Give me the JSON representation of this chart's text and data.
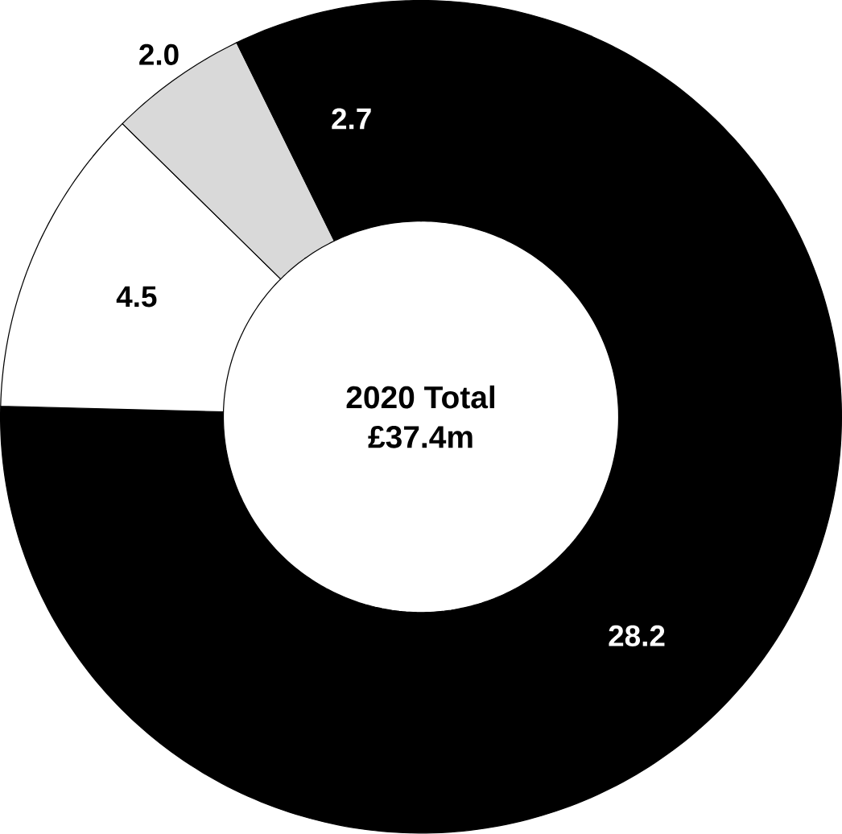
{
  "chart_data": {
    "type": "donut",
    "categories": [
      null,
      null,
      null,
      null
    ],
    "values": [
      28.2,
      4.5,
      2.0,
      2.7
    ],
    "colors": [
      "#000000",
      "#ffffff",
      "#d9d9d9",
      "#000000"
    ],
    "value_labels": [
      "28.2",
      "4.5",
      "2.0",
      "2.7"
    ],
    "annotations": [
      "2020 Total",
      "£37.4m"
    ]
  }
}
